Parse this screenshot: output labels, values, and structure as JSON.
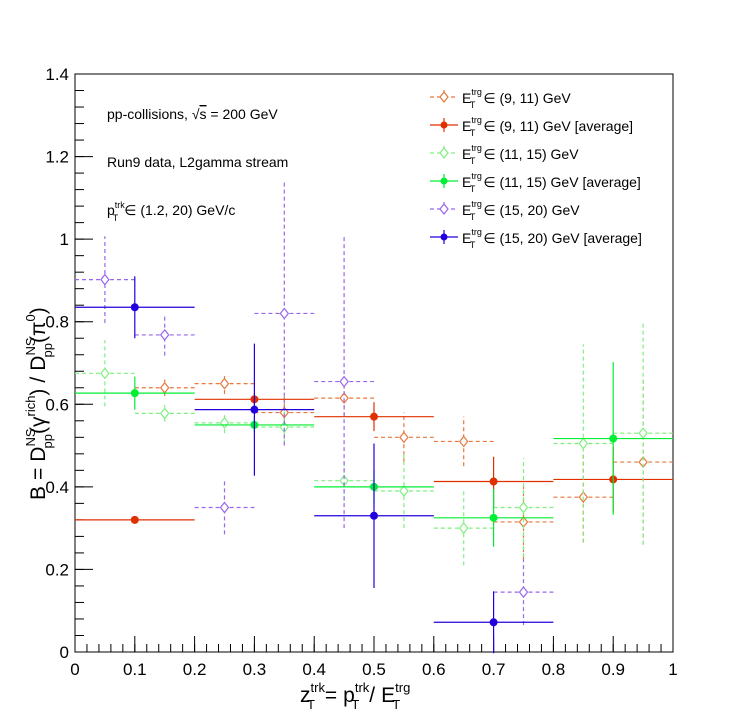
{
  "chart_data": {
    "type": "scatter",
    "xlim": [
      0,
      1
    ],
    "ylim": [
      0,
      1.4
    ],
    "x_ticks": [
      0,
      0.1,
      0.2,
      0.3,
      0.4,
      0.5,
      0.6,
      0.7,
      0.8,
      0.9,
      1
    ],
    "x_tick_labels": [
      "0",
      "0.1",
      "0.2",
      "0.3",
      "0.4",
      "0.5",
      "0.6",
      "0.7",
      "0.8",
      "0.9",
      "1"
    ],
    "y_ticks": [
      0,
      0.2,
      0.4,
      0.6,
      0.8,
      1,
      1.2,
      1.4
    ],
    "y_tick_labels": [
      "0",
      "0.2",
      "0.4",
      "0.6",
      "0.8",
      "1",
      "1.2",
      "1.4"
    ],
    "xlabel": {
      "lhs": "z",
      "lhs_sub": "T",
      "lhs_sup": "trk",
      "eq": "=",
      "p": "p",
      "p_sub": "T",
      "p_sup": "trk",
      "slash": "/",
      "e": "E",
      "e_sub": "T",
      "e_sup": "trg"
    },
    "ylabel": {
      "b": "B",
      "eq": "=",
      "d1": "D",
      "d1_sub": "pp",
      "d1_sup": "NS",
      "arg1": "(γ",
      "arg1_sup": "rich",
      "close1": ")",
      "slash": "/",
      "d2": "D",
      "d2_sub": "pp",
      "d2_sup": "NS",
      "arg2": "(π",
      "arg2_sup": "0",
      "close2": ")"
    },
    "annotations": {
      "line1_text": "pp-collisions,",
      "line1_root": "√",
      "line1_s": "s",
      "line1_value": "= 200 GeV",
      "line2": "Run9 data, L2gamma stream",
      "line3_p": "p",
      "line3_sub": "T",
      "line3_sup": "trk",
      "line3_range": "∈ (1.2, 20) GeV/c"
    },
    "legend_placement": "top-right",
    "series": [
      {
        "legend_e": "E",
        "legend_sub": "T",
        "legend_sup": "trg",
        "name": "∈ (9, 11) GeV",
        "color": "#e8783c",
        "marker": "open-diamond",
        "line": "dashed",
        "points": [
          {
            "x": 0.15,
            "y": 0.64,
            "xerr": 0.05,
            "yerr": 0.02
          },
          {
            "x": 0.25,
            "y": 0.65,
            "xerr": 0.05,
            "yerr": 0.025
          },
          {
            "x": 0.35,
            "y": 0.58,
            "xerr": 0.05,
            "yerr": 0.04
          },
          {
            "x": 0.45,
            "y": 0.615,
            "xerr": 0.05,
            "yerr": 0.045
          },
          {
            "x": 0.55,
            "y": 0.52,
            "xerr": 0.05,
            "yerr": 0.06
          },
          {
            "x": 0.65,
            "y": 0.51,
            "xerr": 0.05,
            "yerr": 0.06
          },
          {
            "x": 0.75,
            "y": 0.315,
            "xerr": 0.05,
            "yerr": 0.09
          },
          {
            "x": 0.85,
            "y": 0.375,
            "xerr": 0.05,
            "yerr": 0.11
          },
          {
            "x": 0.95,
            "y": 0.46,
            "xerr": 0.05,
            "yerr": 0.2
          }
        ]
      },
      {
        "legend_e": "E",
        "legend_sub": "T",
        "legend_sup": "trg",
        "name": "∈ (9, 11) GeV [average]",
        "color": "#e03000",
        "marker": "filled-circle",
        "line": "solid",
        "points": [
          {
            "x": 0.1,
            "y": 0.32,
            "xerr": 0.1,
            "yerr": 0.005
          },
          {
            "x": 0.3,
            "y": 0.612,
            "xerr": 0.1,
            "yerr": 0.015
          },
          {
            "x": 0.5,
            "y": 0.57,
            "xerr": 0.1,
            "yerr": 0.035
          },
          {
            "x": 0.7,
            "y": 0.413,
            "xerr": 0.1,
            "yerr": 0.06
          },
          {
            "x": 0.9,
            "y": 0.418,
            "xerr": 0.1,
            "yerr": 0.08
          }
        ]
      },
      {
        "legend_e": "E",
        "legend_sub": "T",
        "legend_sup": "trg",
        "name": "∈ (11, 15) GeV",
        "color": "#7ff07f",
        "marker": "open-diamond",
        "line": "dashed",
        "points": [
          {
            "x": 0.05,
            "y": 0.675,
            "xerr": 0.05,
            "yerr": 0.08
          },
          {
            "x": 0.15,
            "y": 0.578,
            "xerr": 0.05,
            "yerr": 0.02
          },
          {
            "x": 0.25,
            "y": 0.555,
            "xerr": 0.05,
            "yerr": 0.025
          },
          {
            "x": 0.35,
            "y": 0.545,
            "xerr": 0.05,
            "yerr": 0.04
          },
          {
            "x": 0.45,
            "y": 0.415,
            "xerr": 0.05,
            "yerr": 0.05
          },
          {
            "x": 0.55,
            "y": 0.39,
            "xerr": 0.05,
            "yerr": 0.09
          },
          {
            "x": 0.65,
            "y": 0.3,
            "xerr": 0.05,
            "yerr": 0.09
          },
          {
            "x": 0.75,
            "y": 0.35,
            "xerr": 0.05,
            "yerr": 0.12
          },
          {
            "x": 0.85,
            "y": 0.505,
            "xerr": 0.05,
            "yerr": 0.24
          },
          {
            "x": 0.95,
            "y": 0.53,
            "xerr": 0.05,
            "yerr": 0.27
          }
        ]
      },
      {
        "legend_e": "E",
        "legend_sub": "T",
        "legend_sup": "trg",
        "name": "∈ (11, 15) GeV [average]",
        "color": "#00ee33",
        "marker": "filled-circle",
        "line": "solid",
        "points": [
          {
            "x": 0.1,
            "y": 0.627,
            "xerr": 0.1,
            "yerr": 0.04
          },
          {
            "x": 0.3,
            "y": 0.55,
            "xerr": 0.1,
            "yerr": 0.02
          },
          {
            "x": 0.5,
            "y": 0.4,
            "xerr": 0.1,
            "yerr": 0.04
          },
          {
            "x": 0.7,
            "y": 0.325,
            "xerr": 0.1,
            "yerr": 0.07
          },
          {
            "x": 0.9,
            "y": 0.517,
            "xerr": 0.1,
            "yerr": 0.185
          }
        ]
      },
      {
        "legend_e": "E",
        "legend_sub": "T",
        "legend_sup": "trg",
        "name": "∈ (15, 20) GeV",
        "color": "#9966ee",
        "marker": "open-diamond",
        "line": "dashed",
        "points": [
          {
            "x": 0.05,
            "y": 0.902,
            "xerr": 0.05,
            "yerr": 0.105
          },
          {
            "x": 0.15,
            "y": 0.768,
            "xerr": 0.05,
            "yerr": 0.05
          },
          {
            "x": 0.25,
            "y": 0.35,
            "xerr": 0.05,
            "yerr": 0.065
          },
          {
            "x": 0.35,
            "y": 0.82,
            "xerr": 0.05,
            "yerr": 0.32
          },
          {
            "x": 0.45,
            "y": 0.655,
            "xerr": 0.05,
            "yerr": 0.355
          },
          {
            "x": 0.75,
            "y": 0.145,
            "xerr": 0.05,
            "yerr": 0.08
          }
        ]
      },
      {
        "legend_e": "E",
        "legend_sub": "T",
        "legend_sup": "trg",
        "name": "∈ (15, 20) GeV [average]",
        "color": "#2200dd",
        "marker": "filled-circle",
        "line": "solid",
        "points": [
          {
            "x": 0.1,
            "y": 0.835,
            "xerr": 0.1,
            "yerr": 0.075
          },
          {
            "x": 0.3,
            "y": 0.587,
            "xerr": 0.1,
            "yerr": 0.16
          },
          {
            "x": 0.5,
            "y": 0.33,
            "xerr": 0.1,
            "yerr": 0.175
          },
          {
            "x": 0.7,
            "y": 0.072,
            "xerr": 0.1,
            "yerr": 0.075
          }
        ]
      }
    ]
  }
}
